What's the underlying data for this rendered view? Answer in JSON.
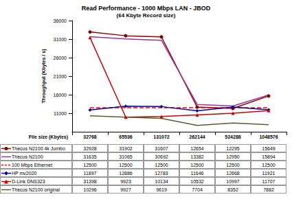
{
  "chart_data": {
    "type": "line",
    "title": "Read Performance - 1000 Mbps LAN - JBOD",
    "subtitle": "(64 Kbyte Record size)",
    "x_label": "File size (Kbytes)",
    "y_label": "Throughput (Kbytes / s)",
    "categories": [
      "32768",
      "65536",
      "131072",
      "262144",
      "524288",
      "1048576"
    ],
    "ylim": [
      6000,
      36000
    ],
    "yticks": [
      11000,
      16000,
      21000,
      26000,
      31000,
      36000
    ],
    "grid": false,
    "series": [
      {
        "name": "Thecus N2100 4k Jumbo",
        "color": "#8b0000",
        "marker": "circle",
        "line_style": "solid",
        "values": [
          32928,
          31902,
          31607,
          12654,
          12295,
          15649
        ]
      },
      {
        "name": "Thecus N2100",
        "color": "#993399",
        "marker": "none",
        "line_style": "solid",
        "values": [
          31635,
          31065,
          30692,
          13382,
          12950,
          15894
        ]
      },
      {
        "name": "100 Mbps Ethernet",
        "color": "#ff0000",
        "marker": "none",
        "line_style": "dashed",
        "values": [
          12500,
          12500,
          12500,
          12500,
          12500,
          12500
        ]
      },
      {
        "name": "HP mv2020",
        "color": "#000099",
        "marker": "diamond",
        "line_style": "solid",
        "values": [
          11897,
          12886,
          12783,
          11646,
          12668,
          11921
        ]
      },
      {
        "name": "D-Link DNS323",
        "color": "#cc0000",
        "marker": "triangle",
        "line_style": "solid",
        "values": [
          31398,
          9923,
          10134,
          10532,
          10997,
          11707
        ]
      },
      {
        "name": "Thecus N2100 original",
        "color": "#4f6228",
        "marker": "none",
        "line_style": "solid",
        "values": [
          10296,
          9927,
          9619,
          7704,
          8352,
          7882
        ]
      }
    ]
  }
}
